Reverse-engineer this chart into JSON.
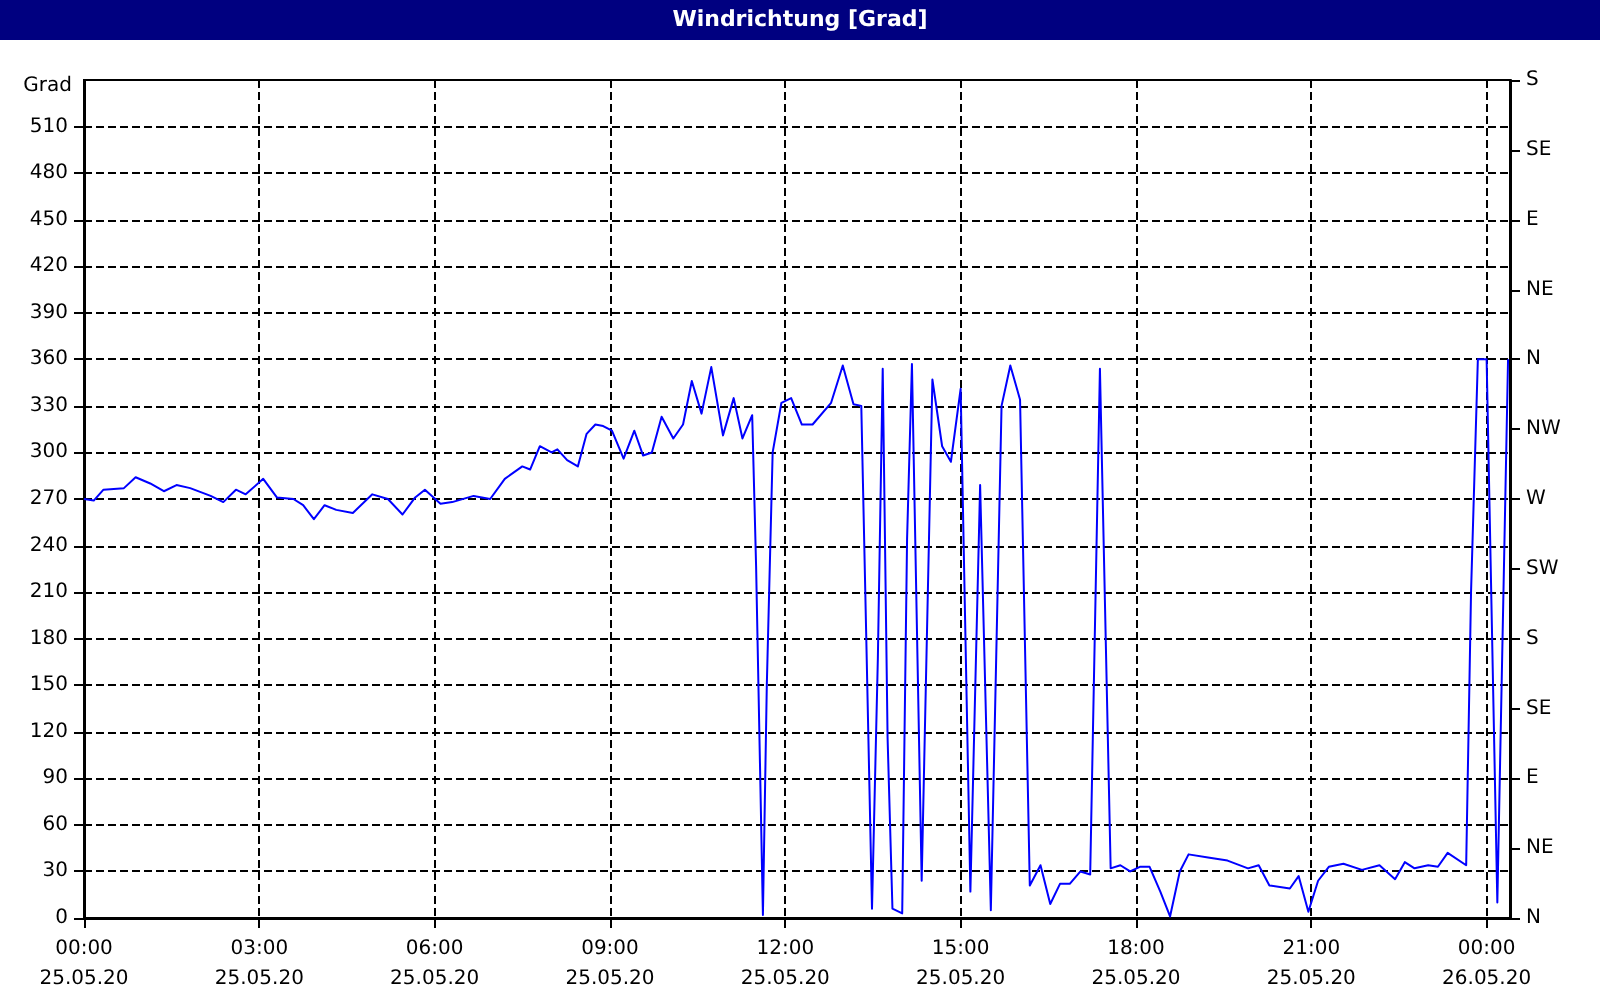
{
  "chart_data": {
    "type": "line",
    "title": "Windrichtung [Grad]",
    "ylabel": "Grad",
    "x": [
      "--05-25T00:00",
      "--05-25T00:10",
      "--05-25T00:20",
      "--05-25T00:41",
      "--05-25T00:53",
      "--05-25T01:08",
      "--05-25T01:22",
      "--05-25T01:35",
      "--05-25T01:49",
      "--05-25T02:10",
      "--05-25T02:23",
      "--05-25T02:36",
      "--05-25T02:46",
      "--05-25T03:04",
      "--05-25T03:18",
      "--05-25T03:35",
      "--05-25T03:45",
      "--05-25T03:56",
      "--05-25T04:07",
      "--05-25T04:19",
      "--05-25T04:36",
      "--05-25T04:56",
      "--05-25T05:12",
      "--05-25T05:27",
      "--05-25T05:40",
      "--05-25T05:50",
      "--05-25T06:06",
      "--05-25T06:18",
      "--05-25T06:40",
      "--05-25T06:57",
      "--05-25T07:12",
      "--05-25T07:30",
      "--05-25T07:38",
      "--05-25T07:48",
      "--05-25T08:00",
      "--05-25T08:06",
      "--05-25T08:16",
      "--05-25T08:27",
      "--05-25T08:36",
      "--05-25T08:45",
      "--05-25T08:53",
      "--05-25T09:02",
      "--05-25T09:14",
      "--05-25T09:25",
      "--05-25T09:34",
      "--05-25T09:43",
      "--05-25T09:53",
      "--05-25T10:05",
      "--05-25T10:15",
      "--05-25T10:24",
      "--05-25T10:34",
      "--05-25T10:44",
      "--05-25T10:56",
      "--05-25T11:07",
      "--05-25T11:16",
      "--05-25T11:26",
      "--05-25T11:30",
      "--05-25T11:34",
      "--05-25T11:37",
      "--05-25T11:41",
      "--05-25T11:47",
      "--05-25T11:56",
      "--05-25T12:06",
      "--05-25T12:17",
      "--05-25T12:28",
      "--05-25T12:47",
      "--05-25T12:59",
      "--05-25T13:10",
      "--05-25T13:18",
      "--05-25T13:23",
      "--05-25T13:29",
      "--05-25T13:35",
      "--05-25T13:40",
      "--05-25T13:45",
      "--05-25T13:50",
      "--05-25T14:00",
      "--05-25T14:05",
      "--05-25T14:10",
      "--05-25T14:20",
      "--05-25T14:31",
      "--05-25T14:41",
      "--05-25T14:50",
      "--05-25T15:00",
      "--05-25T15:10",
      "--05-25T15:20",
      "--05-25T15:31",
      "--05-25T15:42",
      "--05-25T15:51",
      "--05-25T16:01",
      "--05-25T16:11",
      "--05-25T16:22",
      "--05-25T16:32",
      "--05-25T16:42",
      "--05-25T16:52",
      "--05-25T17:03",
      "--05-25T17:13",
      "--05-25T17:23",
      "--05-25T17:34",
      "--05-25T17:44",
      "--05-25T17:54",
      "--05-25T18:04",
      "--05-25T18:14",
      "--05-25T18:25",
      "--05-25T18:35",
      "--05-25T18:45",
      "--05-25T18:54",
      "--05-25T19:14",
      "--05-25T19:34",
      "--05-25T19:55",
      "--05-25T20:06",
      "--05-25T20:17",
      "--05-25T20:38",
      "--05-25T20:47",
      "--05-25T20:57",
      "--05-25T21:07",
      "--05-25T21:18",
      "--05-25T21:33",
      "--05-25T21:52",
      "--05-25T22:10",
      "--05-25T22:26",
      "--05-25T22:36",
      "--05-25T22:46",
      "--05-25T23:00",
      "--05-25T23:10",
      "--05-25T23:20",
      "--05-25T23:39",
      "--05-25T23:44",
      "--05-25T23:51",
      "--05-26T00:00",
      "--05-26T00:11",
      "--05-26T00:22"
    ],
    "series": [
      {
        "color": "#0000ff",
        "values": [
          270,
          269,
          276,
          277,
          284,
          280,
          275,
          279,
          277,
          272,
          268,
          276,
          273,
          283,
          271,
          270,
          266,
          257,
          266,
          263,
          261,
          273,
          270,
          260,
          271,
          276,
          267,
          268,
          272,
          270,
          283,
          291,
          289,
          304,
          300,
          302,
          295,
          291,
          312,
          318,
          317,
          314,
          296,
          314,
          298,
          300,
          323,
          309,
          318,
          346,
          325,
          355,
          311,
          335,
          309,
          324,
          227,
          99,
          2,
          150,
          300,
          332,
          335,
          318,
          318,
          332,
          356,
          331,
          330,
          184,
          6,
          167,
          354,
          116,
          6,
          3,
          244,
          357,
          24,
          347,
          304,
          294,
          341,
          17,
          279,
          5,
          330,
          356,
          334,
          21,
          34,
          9,
          22,
          22,
          30,
          28,
          354,
          32,
          34,
          30,
          33,
          33,
          17,
          1,
          30,
          41,
          39,
          37,
          32,
          34,
          21,
          19,
          27,
          4,
          24,
          33,
          35,
          31,
          34,
          25,
          36,
          32,
          34,
          33,
          42,
          34,
          210,
          360,
          360,
          10,
          360
        ]
      }
    ],
    "xlim": [
      "--05-25T00:00",
      "--05-26T00:24"
    ],
    "xticks": [
      {
        "value": "--05-25T00:00",
        "label": "00:00\n25.05.20"
      },
      {
        "value": "--05-25T03:00",
        "label": "03:00\n25.05.20"
      },
      {
        "value": "--05-25T06:00",
        "label": "06:00\n25.05.20"
      },
      {
        "value": "--05-25T09:00",
        "label": "09:00\n25.05.20"
      },
      {
        "value": "--05-25T12:00",
        "label": "12:00\n25.05.20"
      },
      {
        "value": "--05-25T15:00",
        "label": "15:00\n25.05.20"
      },
      {
        "value": "--05-25T18:00",
        "label": "18:00\n25.05.20"
      },
      {
        "value": "--05-25T21:00",
        "label": "21:00\n25.05.20"
      },
      {
        "value": "--05-26T00:00",
        "label": "00:00\n26.05.20"
      }
    ],
    "ylim": [
      0,
      540
    ],
    "yticks": [
      0,
      30,
      60,
      90,
      120,
      150,
      180,
      210,
      240,
      270,
      300,
      330,
      360,
      390,
      420,
      450,
      480,
      510
    ],
    "y2_categories": [
      "S",
      "SE",
      "E",
      "NE",
      "N",
      "NW",
      "W",
      "SW",
      "S",
      "SE",
      "E",
      "NE",
      "N"
    ],
    "grid": true,
    "marker": "none",
    "line_style": "solid"
  }
}
